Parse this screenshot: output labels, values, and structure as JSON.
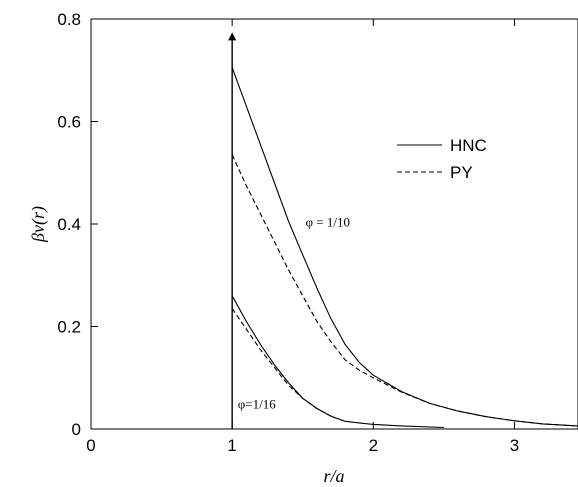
{
  "chart_data": {
    "type": "line",
    "xlabel": "r/a",
    "ylabel": "βv(r)",
    "xlim": [
      0,
      3.45
    ],
    "ylim": [
      0,
      0.8
    ],
    "x_ticks": [
      0,
      1,
      2,
      3
    ],
    "y_ticks": [
      0,
      0.2,
      0.4,
      0.6,
      0.8
    ],
    "x_tick_labels": [
      "0",
      "1",
      "2",
      "3"
    ],
    "y_tick_labels": [
      "0",
      "0.2",
      "0.4",
      "0.6",
      "0.8"
    ],
    "legend": {
      "placement": "top-right",
      "entries": [
        {
          "label": "HNC",
          "style": "solid"
        },
        {
          "label": "PY",
          "style": "dashed"
        }
      ]
    },
    "annotations": [
      {
        "text": "φ = 1/10",
        "x": 1.52,
        "y": 0.395
      },
      {
        "text": "φ=1/16",
        "x": 1.04,
        "y": 0.04
      }
    ],
    "delta_spike": {
      "x": 1.0,
      "y_top": 0.77
    },
    "series": [
      {
        "style": "solid",
        "points": [
          [
            1.0,
            0.705
          ],
          [
            1.1,
            0.63
          ],
          [
            1.2,
            0.555
          ],
          [
            1.3,
            0.48
          ],
          [
            1.4,
            0.405
          ],
          [
            1.5,
            0.34
          ],
          [
            1.6,
            0.275
          ],
          [
            1.7,
            0.215
          ],
          [
            1.8,
            0.165
          ],
          [
            1.9,
            0.13
          ],
          [
            2.0,
            0.105
          ],
          [
            2.2,
            0.073
          ],
          [
            2.4,
            0.05
          ],
          [
            2.6,
            0.035
          ],
          [
            2.8,
            0.024
          ],
          [
            3.0,
            0.016
          ],
          [
            3.2,
            0.01
          ],
          [
            3.45,
            0.006
          ]
        ]
      },
      {
        "style": "dashed",
        "points": [
          [
            1.0,
            0.535
          ],
          [
            1.1,
            0.475
          ],
          [
            1.2,
            0.42
          ],
          [
            1.3,
            0.365
          ],
          [
            1.4,
            0.31
          ],
          [
            1.5,
            0.26
          ],
          [
            1.6,
            0.21
          ],
          [
            1.7,
            0.17
          ],
          [
            1.8,
            0.135
          ],
          [
            1.9,
            0.115
          ],
          [
            2.0,
            0.1
          ],
          [
            2.2,
            0.072
          ],
          [
            2.4,
            0.05
          ],
          [
            2.6,
            0.035
          ],
          [
            2.8,
            0.024
          ],
          [
            3.0,
            0.016
          ],
          [
            3.2,
            0.01
          ],
          [
            3.45,
            0.006
          ]
        ]
      },
      {
        "style": "solid",
        "points": [
          [
            1.0,
            0.26
          ],
          [
            1.1,
            0.21
          ],
          [
            1.2,
            0.165
          ],
          [
            1.3,
            0.125
          ],
          [
            1.4,
            0.09
          ],
          [
            1.5,
            0.06
          ],
          [
            1.6,
            0.04
          ],
          [
            1.7,
            0.025
          ],
          [
            1.8,
            0.015
          ],
          [
            1.9,
            0.012
          ],
          [
            2.0,
            0.009
          ],
          [
            2.2,
            0.006
          ],
          [
            2.5,
            0.003
          ]
        ]
      },
      {
        "style": "dashed",
        "points": [
          [
            1.0,
            0.235
          ],
          [
            1.1,
            0.195
          ],
          [
            1.2,
            0.155
          ],
          [
            1.3,
            0.12
          ],
          [
            1.4,
            0.085
          ],
          [
            1.5,
            0.06
          ],
          [
            1.6,
            0.04
          ],
          [
            1.7,
            0.025
          ]
        ]
      }
    ]
  }
}
